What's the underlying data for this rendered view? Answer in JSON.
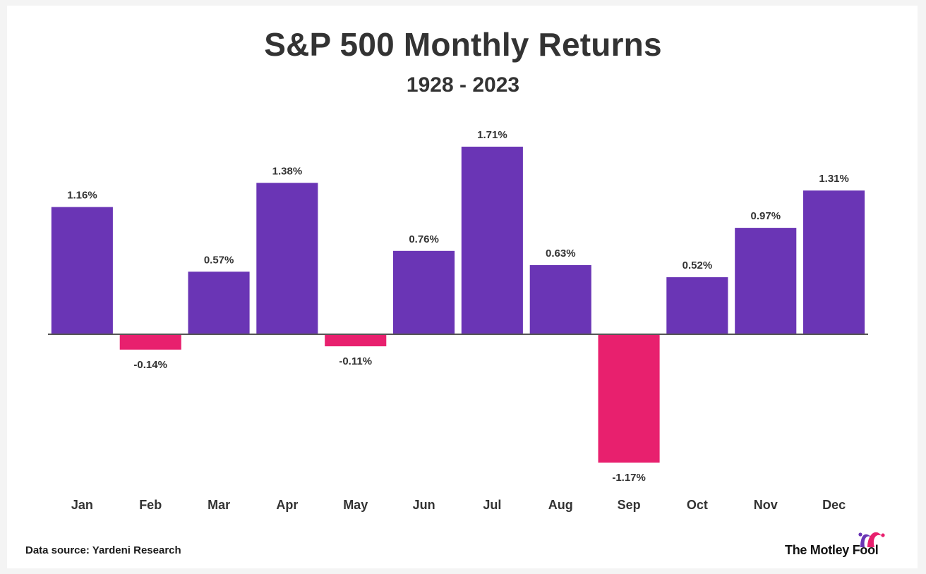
{
  "header": {
    "title": "S&P 500 Monthly Returns",
    "subtitle": "1928 - 2023"
  },
  "footer": {
    "source": "Data source: Yardeni Research",
    "brand": "The Motley Fool",
    "brand_logo_icon": "jester-hat-icon"
  },
  "colors": {
    "positive": "#6a35b5",
    "negative": "#e8206e",
    "axis": "#555555",
    "text": "#333333",
    "logo_left": "#6a35b5",
    "logo_right": "#e8206e"
  },
  "chart_data": {
    "type": "bar",
    "title": "S&P 500 Monthly Returns",
    "subtitle": "1928 - 2023",
    "xlabel": "",
    "ylabel": "",
    "categories": [
      "Jan",
      "Feb",
      "Mar",
      "Apr",
      "May",
      "Jun",
      "Jul",
      "Aug",
      "Sep",
      "Oct",
      "Nov",
      "Dec"
    ],
    "values": [
      1.16,
      -0.14,
      0.57,
      1.38,
      -0.11,
      0.76,
      1.71,
      0.63,
      -1.17,
      0.52,
      0.97,
      1.31
    ],
    "value_labels": [
      "1.16%",
      "-0.14%",
      "0.57%",
      "1.38%",
      "-0.11%",
      "0.76%",
      "1.71%",
      "0.63%",
      "-1.17%",
      "0.52%",
      "0.97%",
      "1.31%"
    ],
    "ylim": [
      -1.17,
      1.71
    ],
    "unit": "%",
    "grid": false,
    "legend": "none"
  }
}
